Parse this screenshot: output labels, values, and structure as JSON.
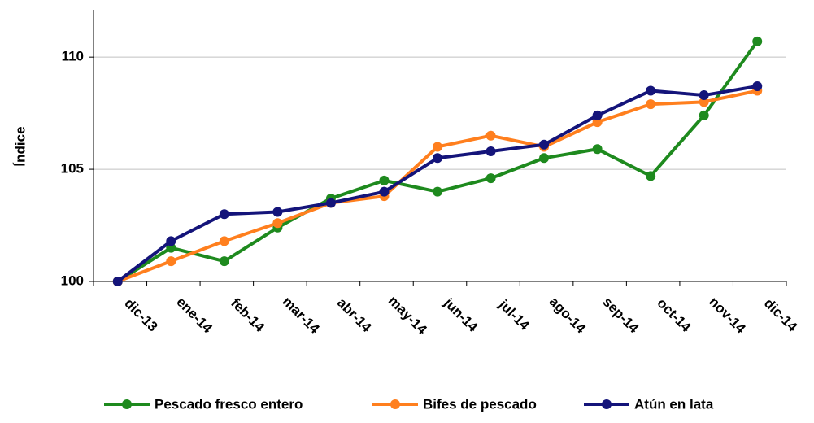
{
  "chart_data": {
    "type": "line",
    "ylabel": "Índice",
    "categories": [
      "dic-13",
      "ene-14",
      "feb-14",
      "mar-14",
      "abr-14",
      "may-14",
      "jun-14",
      "jul-14",
      "ago-14",
      "sep-14",
      "oct-14",
      "nov-14",
      "dic-14"
    ],
    "series": [
      {
        "name": "Pescado fresco entero",
        "color": "#1e8a1e",
        "values": [
          100,
          101.5,
          100.9,
          102.4,
          103.7,
          104.5,
          104.0,
          104.6,
          105.5,
          105.9,
          104.7,
          107.4,
          110.7
        ]
      },
      {
        "name": "Bifes de pescado",
        "color": "#ff7f1e",
        "values": [
          100,
          100.9,
          101.8,
          102.6,
          103.5,
          103.8,
          106.0,
          106.5,
          106.0,
          107.1,
          107.9,
          108.0,
          108.5
        ]
      },
      {
        "name": "Atún en lata",
        "color": "#14147a",
        "values": [
          100,
          101.8,
          103.0,
          103.1,
          103.5,
          104.0,
          105.5,
          105.8,
          106.1,
          107.4,
          108.5,
          108.3,
          108.7
        ]
      }
    ],
    "ylim": [
      100,
      112
    ],
    "yticks": [
      100,
      105,
      110
    ],
    "grid": true,
    "legend": "bottom"
  }
}
